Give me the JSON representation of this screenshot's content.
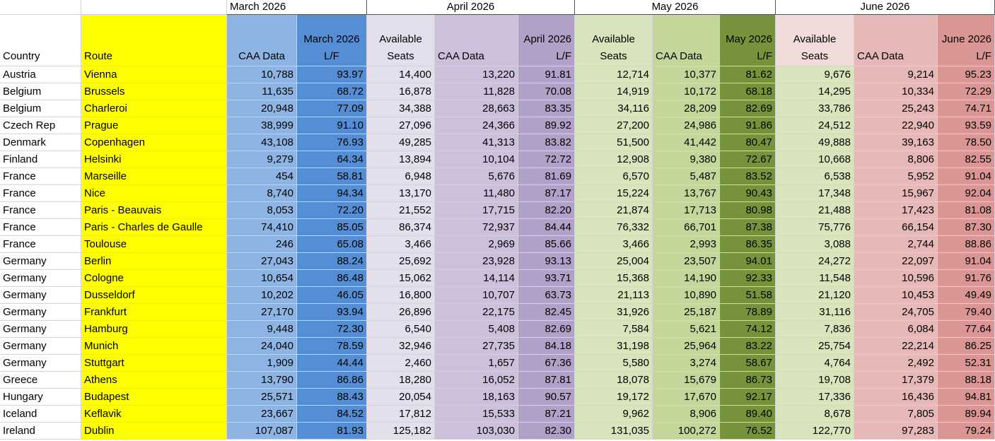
{
  "table": {
    "group_headers": [
      "March 2026",
      "April 2026",
      "May 2026",
      "June 2026"
    ],
    "columns": [
      "Country",
      "Route",
      "CAA Data",
      "March 2026 L/F",
      "Available Seats",
      "CAA Data",
      "April 2026 L/F",
      "Available Seats",
      "CAA Data",
      "May 2026 L/F",
      "Available Seats",
      "CAA Data",
      "June 2026 L/F"
    ],
    "rows": [
      [
        "Austria",
        "Vienna",
        "10,788",
        "93.97",
        "14,400",
        "13,220",
        "91.81",
        "12,714",
        "10,377",
        "81.62",
        "9,676",
        "9,214",
        "95.23"
      ],
      [
        "Belgium",
        "Brussels",
        "11,635",
        "68.72",
        "16,878",
        "11,828",
        "70.08",
        "14,919",
        "10,172",
        "68.18",
        "14,295",
        "10,334",
        "72.29"
      ],
      [
        "Belgium",
        "Charleroi",
        "20,948",
        "77.09",
        "34,388",
        "28,663",
        "83.35",
        "34,116",
        "28,209",
        "82.69",
        "33,786",
        "25,243",
        "74.71"
      ],
      [
        "Czech Rep",
        "Prague",
        "38,999",
        "91.10",
        "27,096",
        "24,366",
        "89.92",
        "27,200",
        "24,986",
        "91.86",
        "24,512",
        "22,940",
        "93.59"
      ],
      [
        "Denmark",
        "Copenhagen",
        "43,108",
        "76.93",
        "49,285",
        "41,313",
        "83.82",
        "51,500",
        "41,442",
        "80.47",
        "49,888",
        "39,163",
        "78.50"
      ],
      [
        "Finland",
        "Helsinki",
        "9,279",
        "64.34",
        "13,894",
        "10,104",
        "72.72",
        "12,908",
        "9,380",
        "72.67",
        "10,668",
        "8,806",
        "82.55"
      ],
      [
        "France",
        "Marseille",
        "454",
        "58.81",
        "6,948",
        "5,676",
        "81.69",
        "6,570",
        "5,487",
        "83.52",
        "6,538",
        "5,952",
        "91.04"
      ],
      [
        "France",
        "Nice",
        "8,740",
        "94.34",
        "13,170",
        "11,480",
        "87.17",
        "15,224",
        "13,767",
        "90.43",
        "17,348",
        "15,967",
        "92.04"
      ],
      [
        "France",
        "Paris - Beauvais",
        "8,053",
        "72.20",
        "21,552",
        "17,715",
        "82.20",
        "21,874",
        "17,713",
        "80.98",
        "21,488",
        "17,423",
        "81.08"
      ],
      [
        "France",
        "Paris - Charles de Gaulle",
        "74,410",
        "85.05",
        "86,374",
        "72,937",
        "84.44",
        "76,332",
        "66,701",
        "87.38",
        "75,776",
        "66,154",
        "87.30"
      ],
      [
        "France",
        "Toulouse",
        "246",
        "65.08",
        "3,466",
        "2,969",
        "85.66",
        "3,466",
        "2,993",
        "86.35",
        "3,088",
        "2,744",
        "88.86"
      ],
      [
        "Germany",
        "Berlin",
        "27,043",
        "88.24",
        "25,692",
        "23,928",
        "93.13",
        "25,004",
        "23,507",
        "94.01",
        "24,272",
        "22,097",
        "91.04"
      ],
      [
        "Germany",
        "Cologne",
        "10,654",
        "86.48",
        "15,062",
        "14,114",
        "93.71",
        "15,368",
        "14,190",
        "92.33",
        "11,548",
        "10,596",
        "91.76"
      ],
      [
        "Germany",
        "Dusseldorf",
        "10,202",
        "46.05",
        "16,800",
        "10,707",
        "63.73",
        "21,113",
        "10,890",
        "51.58",
        "21,120",
        "10,453",
        "49.49"
      ],
      [
        "Germany",
        "Frankfurt",
        "27,170",
        "93.94",
        "26,896",
        "22,175",
        "82.45",
        "31,926",
        "25,187",
        "78.89",
        "31,116",
        "24,705",
        "79.40"
      ],
      [
        "Germany",
        "Hamburg",
        "9,448",
        "72.30",
        "6,540",
        "5,408",
        "82.69",
        "7,584",
        "5,621",
        "74.12",
        "7,836",
        "6,084",
        "77.64"
      ],
      [
        "Germany",
        "Munich",
        "24,040",
        "78.59",
        "32,946",
        "27,735",
        "84.18",
        "31,198",
        "25,964",
        "83.22",
        "25,754",
        "22,214",
        "86.25"
      ],
      [
        "Germany",
        "Stuttgart",
        "1,909",
        "44.44",
        "2,460",
        "1,657",
        "67.36",
        "5,580",
        "3,274",
        "58.67",
        "4,764",
        "2,492",
        "52.31"
      ],
      [
        "Greece",
        "Athens",
        "13,790",
        "86.86",
        "18,280",
        "16,052",
        "87.81",
        "18,078",
        "15,679",
        "86.73",
        "19,708",
        "17,379",
        "88.18"
      ],
      [
        "Hungary",
        "Budapest",
        "25,571",
        "88.43",
        "20,054",
        "18,163",
        "90.57",
        "19,172",
        "17,670",
        "92.17",
        "17,336",
        "16,436",
        "94.81"
      ],
      [
        "Iceland",
        "Keflavik",
        "23,667",
        "84.52",
        "17,812",
        "15,533",
        "87.21",
        "9,962",
        "8,906",
        "89.40",
        "8,678",
        "7,805",
        "89.94"
      ],
      [
        "Ireland",
        "Dublin",
        "107,087",
        "81.93",
        "125,182",
        "103,030",
        "82.30",
        "131,035",
        "100,272",
        "76.52",
        "122,770",
        "97,283",
        "79.24"
      ]
    ]
  }
}
